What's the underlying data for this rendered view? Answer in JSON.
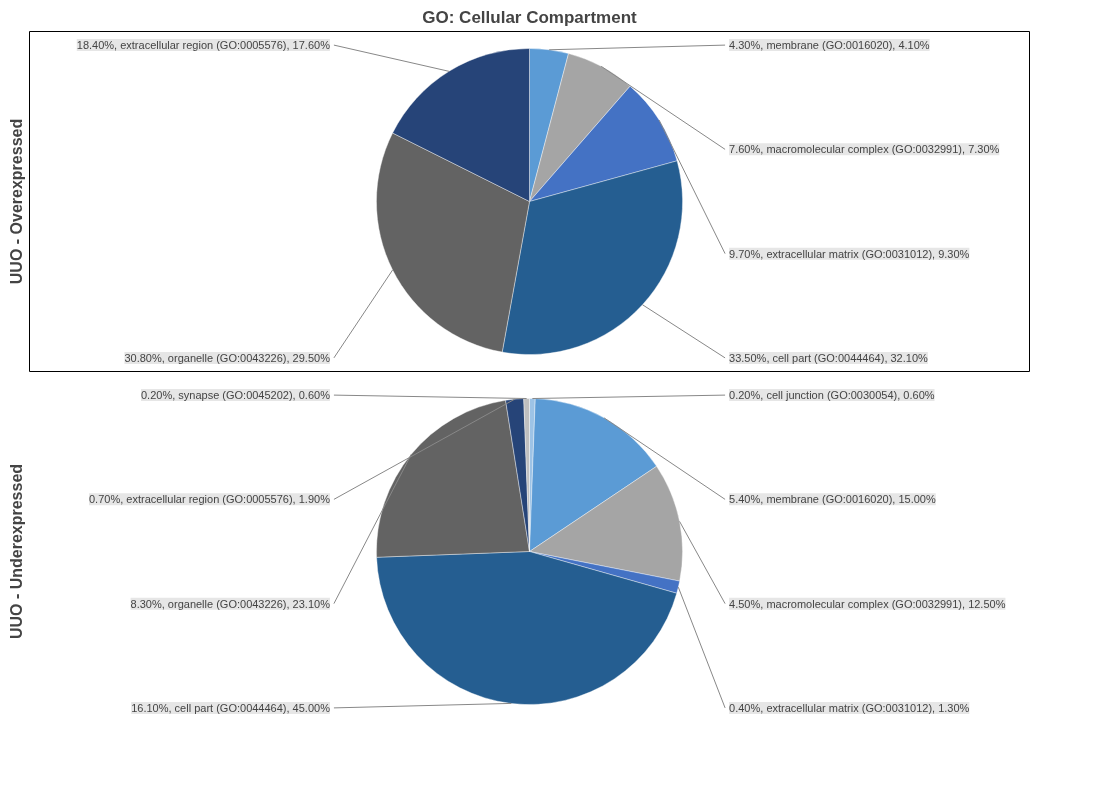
{
  "chart_data": [
    {
      "type": "pie",
      "title": "GO: Cellular Compartment",
      "ylabel": "UUO - Overexpressed",
      "categories": [
        "4.30%, membrane (GO:0016020)",
        "7.60%, macromolecular complex (GO:0032991)",
        "9.70%, extracellular matrix (GO:0031012)",
        "33.50%, cell part (GO:0044464)",
        "30.80%, organelle (GO:0043226)",
        "18.40%, extracellular region (GO:0005576)"
      ],
      "values": [
        4.1,
        7.3,
        9.3,
        32.1,
        29.5,
        17.6
      ],
      "colors": [
        "#5b9bd5",
        "#a5a5a5",
        "#4472c4",
        "#255e91",
        "#636363",
        "#264478"
      ],
      "value_labels": [
        "4.10%",
        "7.30%",
        "9.30%",
        "32.10%",
        "29.50%",
        "17.60%"
      ]
    },
    {
      "type": "pie",
      "ylabel": "UUO - Underexpressed",
      "categories": [
        "0.20%, cell junction (GO:0030054)",
        "5.40%, membrane (GO:0016020)",
        "4.50%, macromolecular complex (GO:0032991)",
        "0.40%, extracellular matrix (GO:0031012)",
        "16.10%, cell part (GO:0044464)",
        "8.30%, organelle (GO:0043226)",
        "0.70%, extracellular region (GO:0005576)",
        "0.20%, synapse (GO:0045202)"
      ],
      "values": [
        0.6,
        15.0,
        12.5,
        1.3,
        45.0,
        23.1,
        1.9,
        0.6
      ],
      "colors": [
        "#9dc3e6",
        "#5b9bd5",
        "#a5a5a5",
        "#4472c4",
        "#255e91",
        "#636363",
        "#264478",
        "#bfbfbf"
      ],
      "value_labels": [
        "0.60%",
        "15.00%",
        "12.50%",
        "1.30%",
        "45.00%",
        "23.10%",
        "1.90%",
        "0.60%"
      ]
    }
  ]
}
